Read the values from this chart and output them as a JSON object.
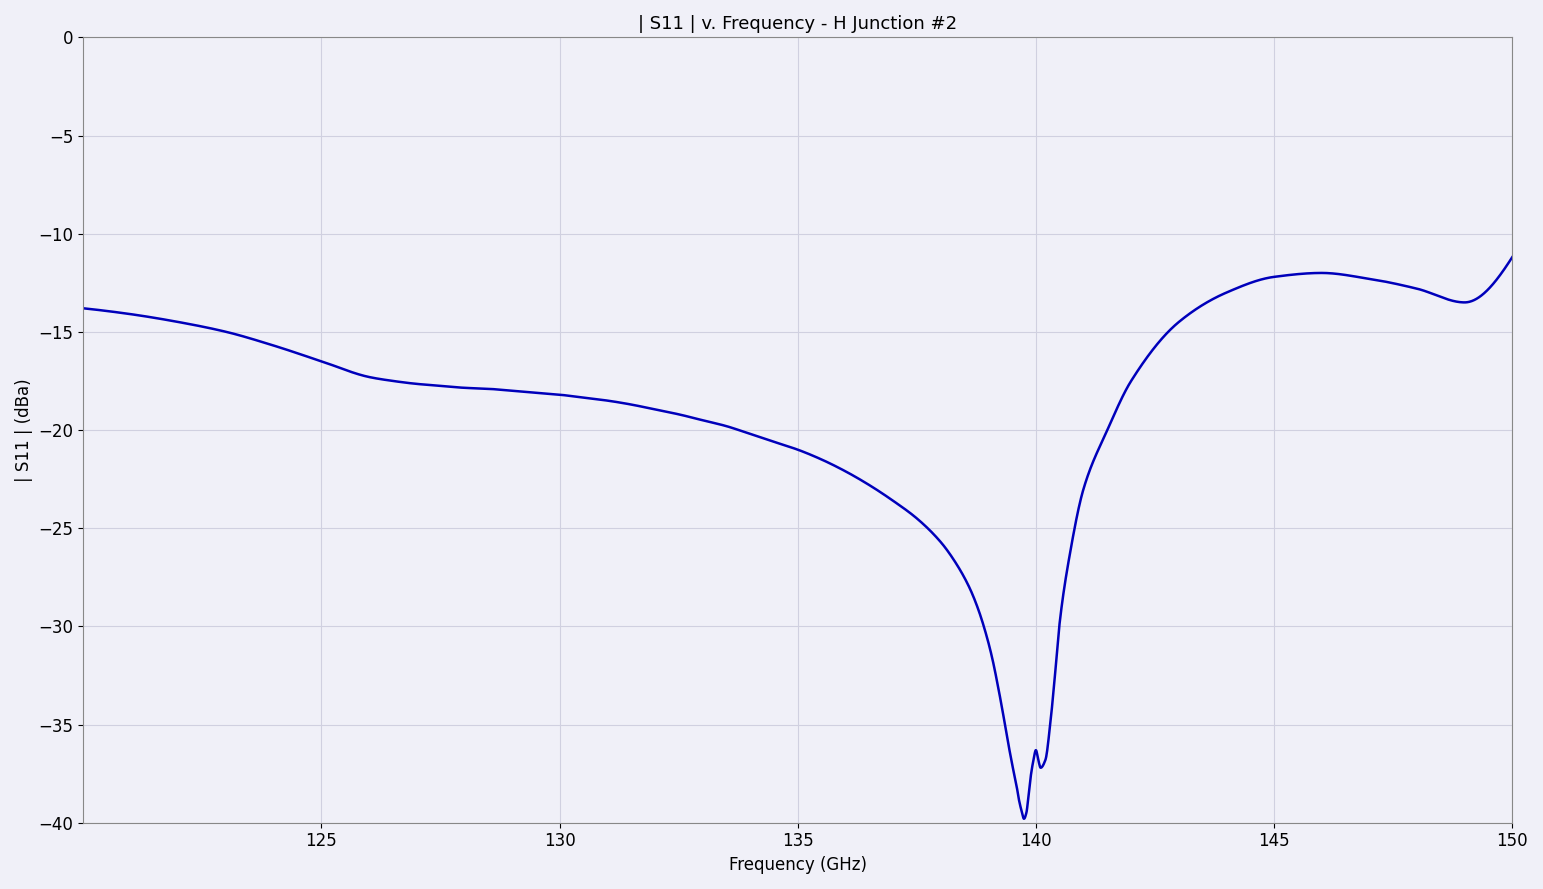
{
  "title": "| S11 | v. Frequency - H Junction #2",
  "xlabel": "Frequency (GHz)",
  "ylabel": "| S11 | (dBa)",
  "xlim": [
    120,
    150
  ],
  "ylim": [
    -40,
    0
  ],
  "xticks": [
    125,
    130,
    135,
    140,
    145,
    150
  ],
  "yticks": [
    0,
    -5,
    -10,
    -15,
    -20,
    -25,
    -30,
    -35,
    -40
  ],
  "line_color": "#0000bb",
  "line_width": 1.8,
  "bg_color": "#f0f0f8",
  "grid_color": "#d0d0e0",
  "title_fontsize": 13,
  "label_fontsize": 12,
  "tick_fontsize": 12,
  "curve_points": {
    "freq": [
      120.0,
      121.0,
      122.0,
      123.0,
      124.0,
      125.0,
      126.0,
      126.5,
      127.0,
      127.5,
      128.0,
      128.5,
      129.0,
      129.5,
      130.0,
      130.5,
      131.0,
      131.5,
      132.0,
      132.5,
      133.0,
      133.5,
      134.0,
      134.5,
      135.0,
      135.5,
      136.0,
      136.5,
      137.0,
      137.5,
      138.0,
      138.3,
      138.6,
      138.8,
      139.0,
      139.1,
      139.2,
      139.3,
      139.4,
      139.5,
      139.6,
      139.65,
      139.7,
      139.75,
      139.8,
      139.85,
      139.9,
      139.95,
      140.0,
      140.05,
      140.1,
      140.2,
      140.3,
      140.4,
      140.5,
      140.7,
      141.0,
      141.5,
      142.0,
      143.0,
      144.0,
      145.0,
      146.0,
      147.0,
      148.0,
      149.0,
      150.0
    ],
    "s11": [
      -13.8,
      -14.1,
      -14.5,
      -15.0,
      -15.7,
      -16.5,
      -17.3,
      -17.5,
      -17.65,
      -17.75,
      -17.85,
      -17.9,
      -18.0,
      -18.1,
      -18.2,
      -18.35,
      -18.5,
      -18.7,
      -18.95,
      -19.2,
      -19.5,
      -19.8,
      -20.2,
      -20.6,
      -21.0,
      -21.5,
      -22.1,
      -22.8,
      -23.6,
      -24.5,
      -25.7,
      -26.7,
      -28.0,
      -29.2,
      -30.8,
      -31.8,
      -33.0,
      -34.3,
      -35.7,
      -37.0,
      -38.2,
      -38.9,
      -39.4,
      -39.8,
      -39.5,
      -38.5,
      -37.5,
      -36.8,
      -36.3,
      -36.8,
      -37.2,
      -36.8,
      -35.0,
      -32.5,
      -29.8,
      -26.5,
      -23.0,
      -20.0,
      -17.5,
      -14.5,
      -13.0,
      -12.2,
      -12.0,
      -12.3,
      -12.8,
      -13.5,
      -11.2
    ]
  }
}
